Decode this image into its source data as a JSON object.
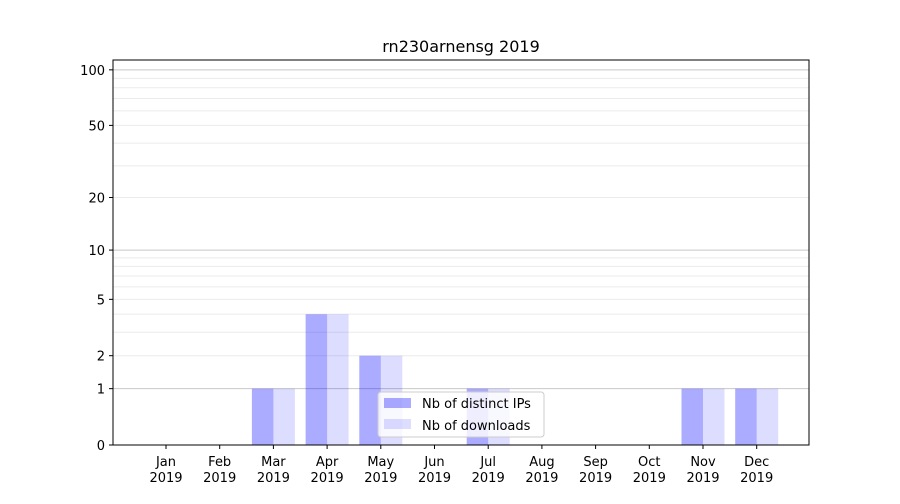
{
  "chart_data": {
    "type": "bar",
    "title": "rn230arnensg 2019",
    "xlabel": "",
    "ylabel": "",
    "yscale": "log(1+y)",
    "ylim": [
      0,
      113
    ],
    "yticks": [
      0,
      1,
      2,
      5,
      10,
      20,
      50,
      100
    ],
    "grid": true,
    "legend_position": "bottom-center",
    "categories": [
      "Jan\n2019",
      "Feb\n2019",
      "Mar\n2019",
      "Apr\n2019",
      "May\n2019",
      "Jun\n2019",
      "Jul\n2019",
      "Aug\n2019",
      "Sep\n2019",
      "Oct\n2019",
      "Nov\n2019",
      "Dec\n2019"
    ],
    "series": [
      {
        "name": "Nb of distinct IPs",
        "color": "#aaaaff",
        "values": [
          0,
          0,
          1,
          4,
          2,
          0,
          1,
          0,
          0,
          0,
          1,
          1
        ]
      },
      {
        "name": "Nb of downloads",
        "color": "#ddddff",
        "values": [
          0,
          0,
          1,
          4,
          2,
          0,
          1,
          0,
          0,
          0,
          1,
          1
        ]
      }
    ]
  }
}
